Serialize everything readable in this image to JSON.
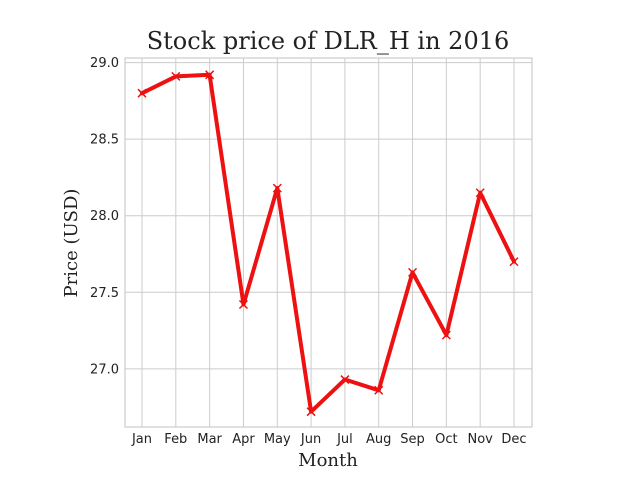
{
  "chart_data": {
    "type": "line",
    "title": "Stock price of DLR_H in 2016",
    "xlabel": "Month",
    "ylabel": "Price (USD)",
    "categories": [
      "Jan",
      "Feb",
      "Mar",
      "Apr",
      "May",
      "Jun",
      "Jul",
      "Aug",
      "Sep",
      "Oct",
      "Nov",
      "Dec"
    ],
    "series": [
      {
        "values": [
          28.8,
          28.91,
          28.92,
          27.42,
          28.18,
          26.72,
          26.93,
          26.86,
          27.63,
          27.22,
          28.15,
          27.7
        ],
        "color": "#ee1111",
        "marker": "x"
      }
    ],
    "ylim": [
      26.62,
      29.03
    ],
    "yticks": [
      27.0,
      27.5,
      28.0,
      28.5,
      29.0
    ],
    "ytick_labels": [
      "27.0",
      "27.5",
      "28.0",
      "28.5",
      "29.0"
    ],
    "grid": true,
    "legend": false,
    "colors": {
      "grid": "#cccccc",
      "frame": "#cccccc",
      "text": "#222222"
    }
  }
}
